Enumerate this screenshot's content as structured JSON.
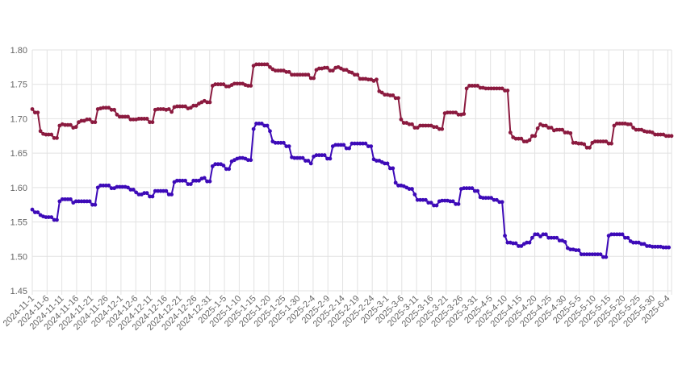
{
  "chart_data": {
    "type": "line",
    "ylim": [
      1.45,
      1.8
    ],
    "yticks": [
      "1.45",
      "1.50",
      "1.55",
      "1.60",
      "1.65",
      "1.70",
      "1.75",
      "1.80"
    ],
    "xticks": [
      "2024-11-1",
      "2024-11-6",
      "2024-11-11",
      "2024-11-16",
      "2024-11-21",
      "2024-11-26",
      "2024-12-1",
      "2024-12-6",
      "2024-12-11",
      "2024-12-16",
      "2024-12-21",
      "2024-12-26",
      "2024-12-31",
      "2025-1-5",
      "2025-1-10",
      "2025-1-15",
      "2025-1-20",
      "2025-1-25",
      "2025-1-30",
      "2025-2-4",
      "2025-2-9",
      "2025-2-14",
      "2025-2-19",
      "2025-2-24",
      "2025-3-1",
      "2025-3-6",
      "2025-3-11",
      "2025-3-16",
      "2025-3-21",
      "2025-3-26",
      "2025-3-31",
      "2025-4-5",
      "2025-4-10",
      "2025-4-15",
      "2025-4-20",
      "2025-4-25",
      "2025-4-30",
      "2025-5-5",
      "2025-5-10",
      "2025-5-15",
      "2025-5-20",
      "2025-5-25",
      "2025-5-30",
      "2025-6-4"
    ],
    "grid": true,
    "colors": {
      "series1": "#8b1a3f",
      "series2": "#3d0ab8",
      "grid": "#e2e2e2",
      "axis_text": "#666666"
    },
    "series": [
      {
        "values": [
          1.714,
          1.709,
          1.709,
          1.682,
          1.678,
          1.677,
          1.677,
          1.677,
          1.672,
          1.672,
          1.69,
          1.692,
          1.691,
          1.691,
          1.691,
          1.687,
          1.688,
          1.695,
          1.697,
          1.697,
          1.699,
          1.699,
          1.695,
          1.695,
          1.714,
          1.715,
          1.716,
          1.716,
          1.716,
          1.713,
          1.713,
          1.706,
          1.703,
          1.703,
          1.703,
          1.703,
          1.699,
          1.699,
          1.699,
          1.7,
          1.7,
          1.7,
          1.7,
          1.695,
          1.695,
          1.713,
          1.714,
          1.714,
          1.714,
          1.713,
          1.714,
          1.71,
          1.717,
          1.718,
          1.718,
          1.718,
          1.718,
          1.715,
          1.716,
          1.719,
          1.719,
          1.722,
          1.724,
          1.726,
          1.724,
          1.724,
          1.748,
          1.75,
          1.75,
          1.75,
          1.75,
          1.747,
          1.747,
          1.749,
          1.751,
          1.751,
          1.751,
          1.751,
          1.749,
          1.748,
          1.748,
          1.777,
          1.779,
          1.779,
          1.779,
          1.779,
          1.779,
          1.775,
          1.772,
          1.77,
          1.77,
          1.77,
          1.77,
          1.768,
          1.768,
          1.764,
          1.764,
          1.764,
          1.764,
          1.764,
          1.764,
          1.764,
          1.759,
          1.759,
          1.771,
          1.773,
          1.773,
          1.774,
          1.774,
          1.77,
          1.77,
          1.774,
          1.775,
          1.773,
          1.771,
          1.771,
          1.768,
          1.767,
          1.764,
          1.764,
          1.758,
          1.758,
          1.758,
          1.757,
          1.757,
          1.755,
          1.757,
          1.74,
          1.738,
          1.735,
          1.735,
          1.734,
          1.734,
          1.73,
          1.73,
          1.699,
          1.694,
          1.694,
          1.692,
          1.692,
          1.687,
          1.687,
          1.69,
          1.69,
          1.69,
          1.69,
          1.69,
          1.688,
          1.688,
          1.685,
          1.685,
          1.708,
          1.709,
          1.709,
          1.709,
          1.709,
          1.706,
          1.706,
          1.707,
          1.744,
          1.748,
          1.748,
          1.748,
          1.748,
          1.745,
          1.745,
          1.744,
          1.744,
          1.744,
          1.744,
          1.744,
          1.744,
          1.744,
          1.741,
          1.741,
          1.68,
          1.673,
          1.671,
          1.671,
          1.671,
          1.667,
          1.667,
          1.669,
          1.675,
          1.675,
          1.686,
          1.692,
          1.69,
          1.69,
          1.687,
          1.687,
          1.683,
          1.684,
          1.684,
          1.684,
          1.68,
          1.68,
          1.679,
          1.665,
          1.665,
          1.664,
          1.664,
          1.663,
          1.658,
          1.658,
          1.665,
          1.667,
          1.667,
          1.667,
          1.667,
          1.667,
          1.664,
          1.664,
          1.69,
          1.693,
          1.693,
          1.693,
          1.693,
          1.692,
          1.692,
          1.687,
          1.684,
          1.684,
          1.684,
          1.682,
          1.681,
          1.681,
          1.68,
          1.677,
          1.677,
          1.677,
          1.677,
          1.675,
          1.675,
          1.675
        ]
      },
      {
        "values": [
          1.568,
          1.564,
          1.564,
          1.56,
          1.558,
          1.557,
          1.557,
          1.557,
          1.553,
          1.553,
          1.58,
          1.583,
          1.583,
          1.583,
          1.583,
          1.578,
          1.58,
          1.58,
          1.58,
          1.58,
          1.58,
          1.58,
          1.575,
          1.575,
          1.6,
          1.603,
          1.603,
          1.603,
          1.603,
          1.599,
          1.599,
          1.601,
          1.601,
          1.601,
          1.601,
          1.6,
          1.597,
          1.597,
          1.593,
          1.59,
          1.59,
          1.592,
          1.592,
          1.587,
          1.587,
          1.595,
          1.595,
          1.595,
          1.595,
          1.595,
          1.59,
          1.59,
          1.608,
          1.61,
          1.61,
          1.61,
          1.61,
          1.605,
          1.605,
          1.61,
          1.61,
          1.61,
          1.613,
          1.614,
          1.609,
          1.609,
          1.631,
          1.634,
          1.634,
          1.634,
          1.632,
          1.627,
          1.627,
          1.638,
          1.64,
          1.642,
          1.643,
          1.643,
          1.642,
          1.64,
          1.64,
          1.685,
          1.693,
          1.693,
          1.693,
          1.69,
          1.69,
          1.682,
          1.667,
          1.665,
          1.665,
          1.665,
          1.665,
          1.66,
          1.66,
          1.644,
          1.643,
          1.643,
          1.643,
          1.643,
          1.639,
          1.639,
          1.635,
          1.645,
          1.647,
          1.647,
          1.647,
          1.647,
          1.642,
          1.642,
          1.66,
          1.662,
          1.662,
          1.662,
          1.662,
          1.657,
          1.657,
          1.664,
          1.664,
          1.664,
          1.664,
          1.664,
          1.664,
          1.66,
          1.66,
          1.641,
          1.639,
          1.639,
          1.637,
          1.635,
          1.635,
          1.628,
          1.628,
          1.607,
          1.603,
          1.603,
          1.602,
          1.6,
          1.598,
          1.598,
          1.59,
          1.582,
          1.582,
          1.582,
          1.582,
          1.578,
          1.578,
          1.574,
          1.574,
          1.58,
          1.581,
          1.581,
          1.581,
          1.58,
          1.58,
          1.576,
          1.576,
          1.598,
          1.599,
          1.599,
          1.599,
          1.599,
          1.595,
          1.595,
          1.586,
          1.585,
          1.585,
          1.585,
          1.585,
          1.582,
          1.582,
          1.579,
          1.579,
          1.53,
          1.52,
          1.52,
          1.519,
          1.519,
          1.515,
          1.515,
          1.518,
          1.52,
          1.52,
          1.527,
          1.532,
          1.532,
          1.529,
          1.532,
          1.532,
          1.527,
          1.527,
          1.527,
          1.527,
          1.523,
          1.523,
          1.521,
          1.512,
          1.51,
          1.51,
          1.509,
          1.509,
          1.503,
          1.503,
          1.503,
          1.503,
          1.503,
          1.503,
          1.503,
          1.503,
          1.499,
          1.499,
          1.53,
          1.532,
          1.532,
          1.532,
          1.532,
          1.532,
          1.527,
          1.527,
          1.522,
          1.52,
          1.52,
          1.52,
          1.518,
          1.518,
          1.515,
          1.515,
          1.514,
          1.514,
          1.514,
          1.514,
          1.513,
          1.513,
          1.513
        ]
      }
    ]
  }
}
